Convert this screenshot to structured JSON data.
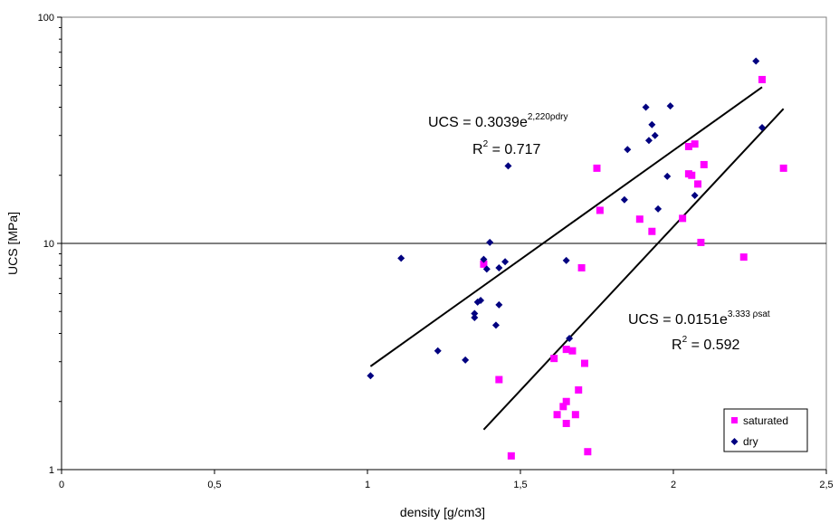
{
  "chart_data": {
    "type": "scatter",
    "title": "",
    "xlabel": "density [g/cm3]",
    "ylabel": "UCS [MPa]",
    "xlim": [
      0,
      2.5
    ],
    "ylim": [
      1,
      100
    ],
    "yscale": "log",
    "x_ticks": [
      "0",
      "0,5",
      "1",
      "1,5",
      "2",
      "2,5"
    ],
    "y_ticks": [
      "1",
      "10",
      "100"
    ],
    "grid": "horizontal line at 10 only",
    "legend": "bottom-right",
    "series": [
      {
        "name": "saturated",
        "color": "#ff00ff",
        "marker": "square",
        "points": [
          [
            1.38,
            8.1
          ],
          [
            1.43,
            2.5
          ],
          [
            1.47,
            1.15
          ],
          [
            1.61,
            3.1
          ],
          [
            1.62,
            1.75
          ],
          [
            1.64,
            1.9
          ],
          [
            1.65,
            2.0
          ],
          [
            1.65,
            1.6
          ],
          [
            1.65,
            3.4
          ],
          [
            1.67,
            3.35
          ],
          [
            1.68,
            1.75
          ],
          [
            1.69,
            2.25
          ],
          [
            1.7,
            7.8
          ],
          [
            1.71,
            2.95
          ],
          [
            1.72,
            1.2
          ],
          [
            1.75,
            21.5
          ],
          [
            1.76,
            14.0
          ],
          [
            1.89,
            12.8
          ],
          [
            1.93,
            11.3
          ],
          [
            2.03,
            12.9
          ],
          [
            2.05,
            20.3
          ],
          [
            2.05,
            26.8
          ],
          [
            2.06,
            20.0
          ],
          [
            2.07,
            27.5
          ],
          [
            2.08,
            18.3
          ],
          [
            2.09,
            10.1
          ],
          [
            2.1,
            22.3
          ],
          [
            2.23,
            8.7
          ],
          [
            2.29,
            53.0
          ],
          [
            2.36,
            21.5
          ]
        ]
      },
      {
        "name": "dry",
        "color": "#000080",
        "marker": "diamond",
        "points": [
          [
            1.01,
            2.6
          ],
          [
            1.11,
            8.6
          ],
          [
            1.23,
            3.35
          ],
          [
            1.32,
            3.05
          ],
          [
            1.35,
            4.9
          ],
          [
            1.35,
            4.7
          ],
          [
            1.36,
            5.5
          ],
          [
            1.37,
            5.6
          ],
          [
            1.38,
            8.5
          ],
          [
            1.39,
            7.7
          ],
          [
            1.4,
            10.1
          ],
          [
            1.42,
            4.35
          ],
          [
            1.43,
            5.35
          ],
          [
            1.43,
            7.8
          ],
          [
            1.45,
            8.3
          ],
          [
            1.46,
            22.0
          ],
          [
            1.65,
            8.4
          ],
          [
            1.66,
            3.8
          ],
          [
            1.84,
            15.6
          ],
          [
            1.85,
            26.0
          ],
          [
            1.91,
            40.0
          ],
          [
            1.92,
            28.5
          ],
          [
            1.93,
            33.5
          ],
          [
            1.94,
            30.0
          ],
          [
            1.95,
            14.2
          ],
          [
            1.98,
            19.8
          ],
          [
            1.99,
            40.5
          ],
          [
            2.07,
            16.3
          ],
          [
            2.27,
            64.0
          ],
          [
            2.29,
            32.5
          ]
        ]
      }
    ],
    "trendlines": [
      {
        "series": "dry",
        "x_start": 1.01,
        "x_end": 2.29,
        "a": 0.3039,
        "b": 2.22
      },
      {
        "series": "saturated",
        "x_start": 1.38,
        "x_end": 2.36,
        "a": 0.0151,
        "b": 3.333
      }
    ],
    "annotations": [
      {
        "equation_prefix": "UCS = 0.3039e",
        "equation_exponent": "2,220ρdry",
        "r2_prefix": "R",
        "r2_sup": "2",
        "r2_value": " = 0.717"
      },
      {
        "equation_prefix": "UCS = 0.0151e",
        "equation_exponent": "3.333 ρsat",
        "r2_prefix": "R",
        "r2_sup": "2",
        "r2_value": " = 0.592"
      }
    ]
  }
}
